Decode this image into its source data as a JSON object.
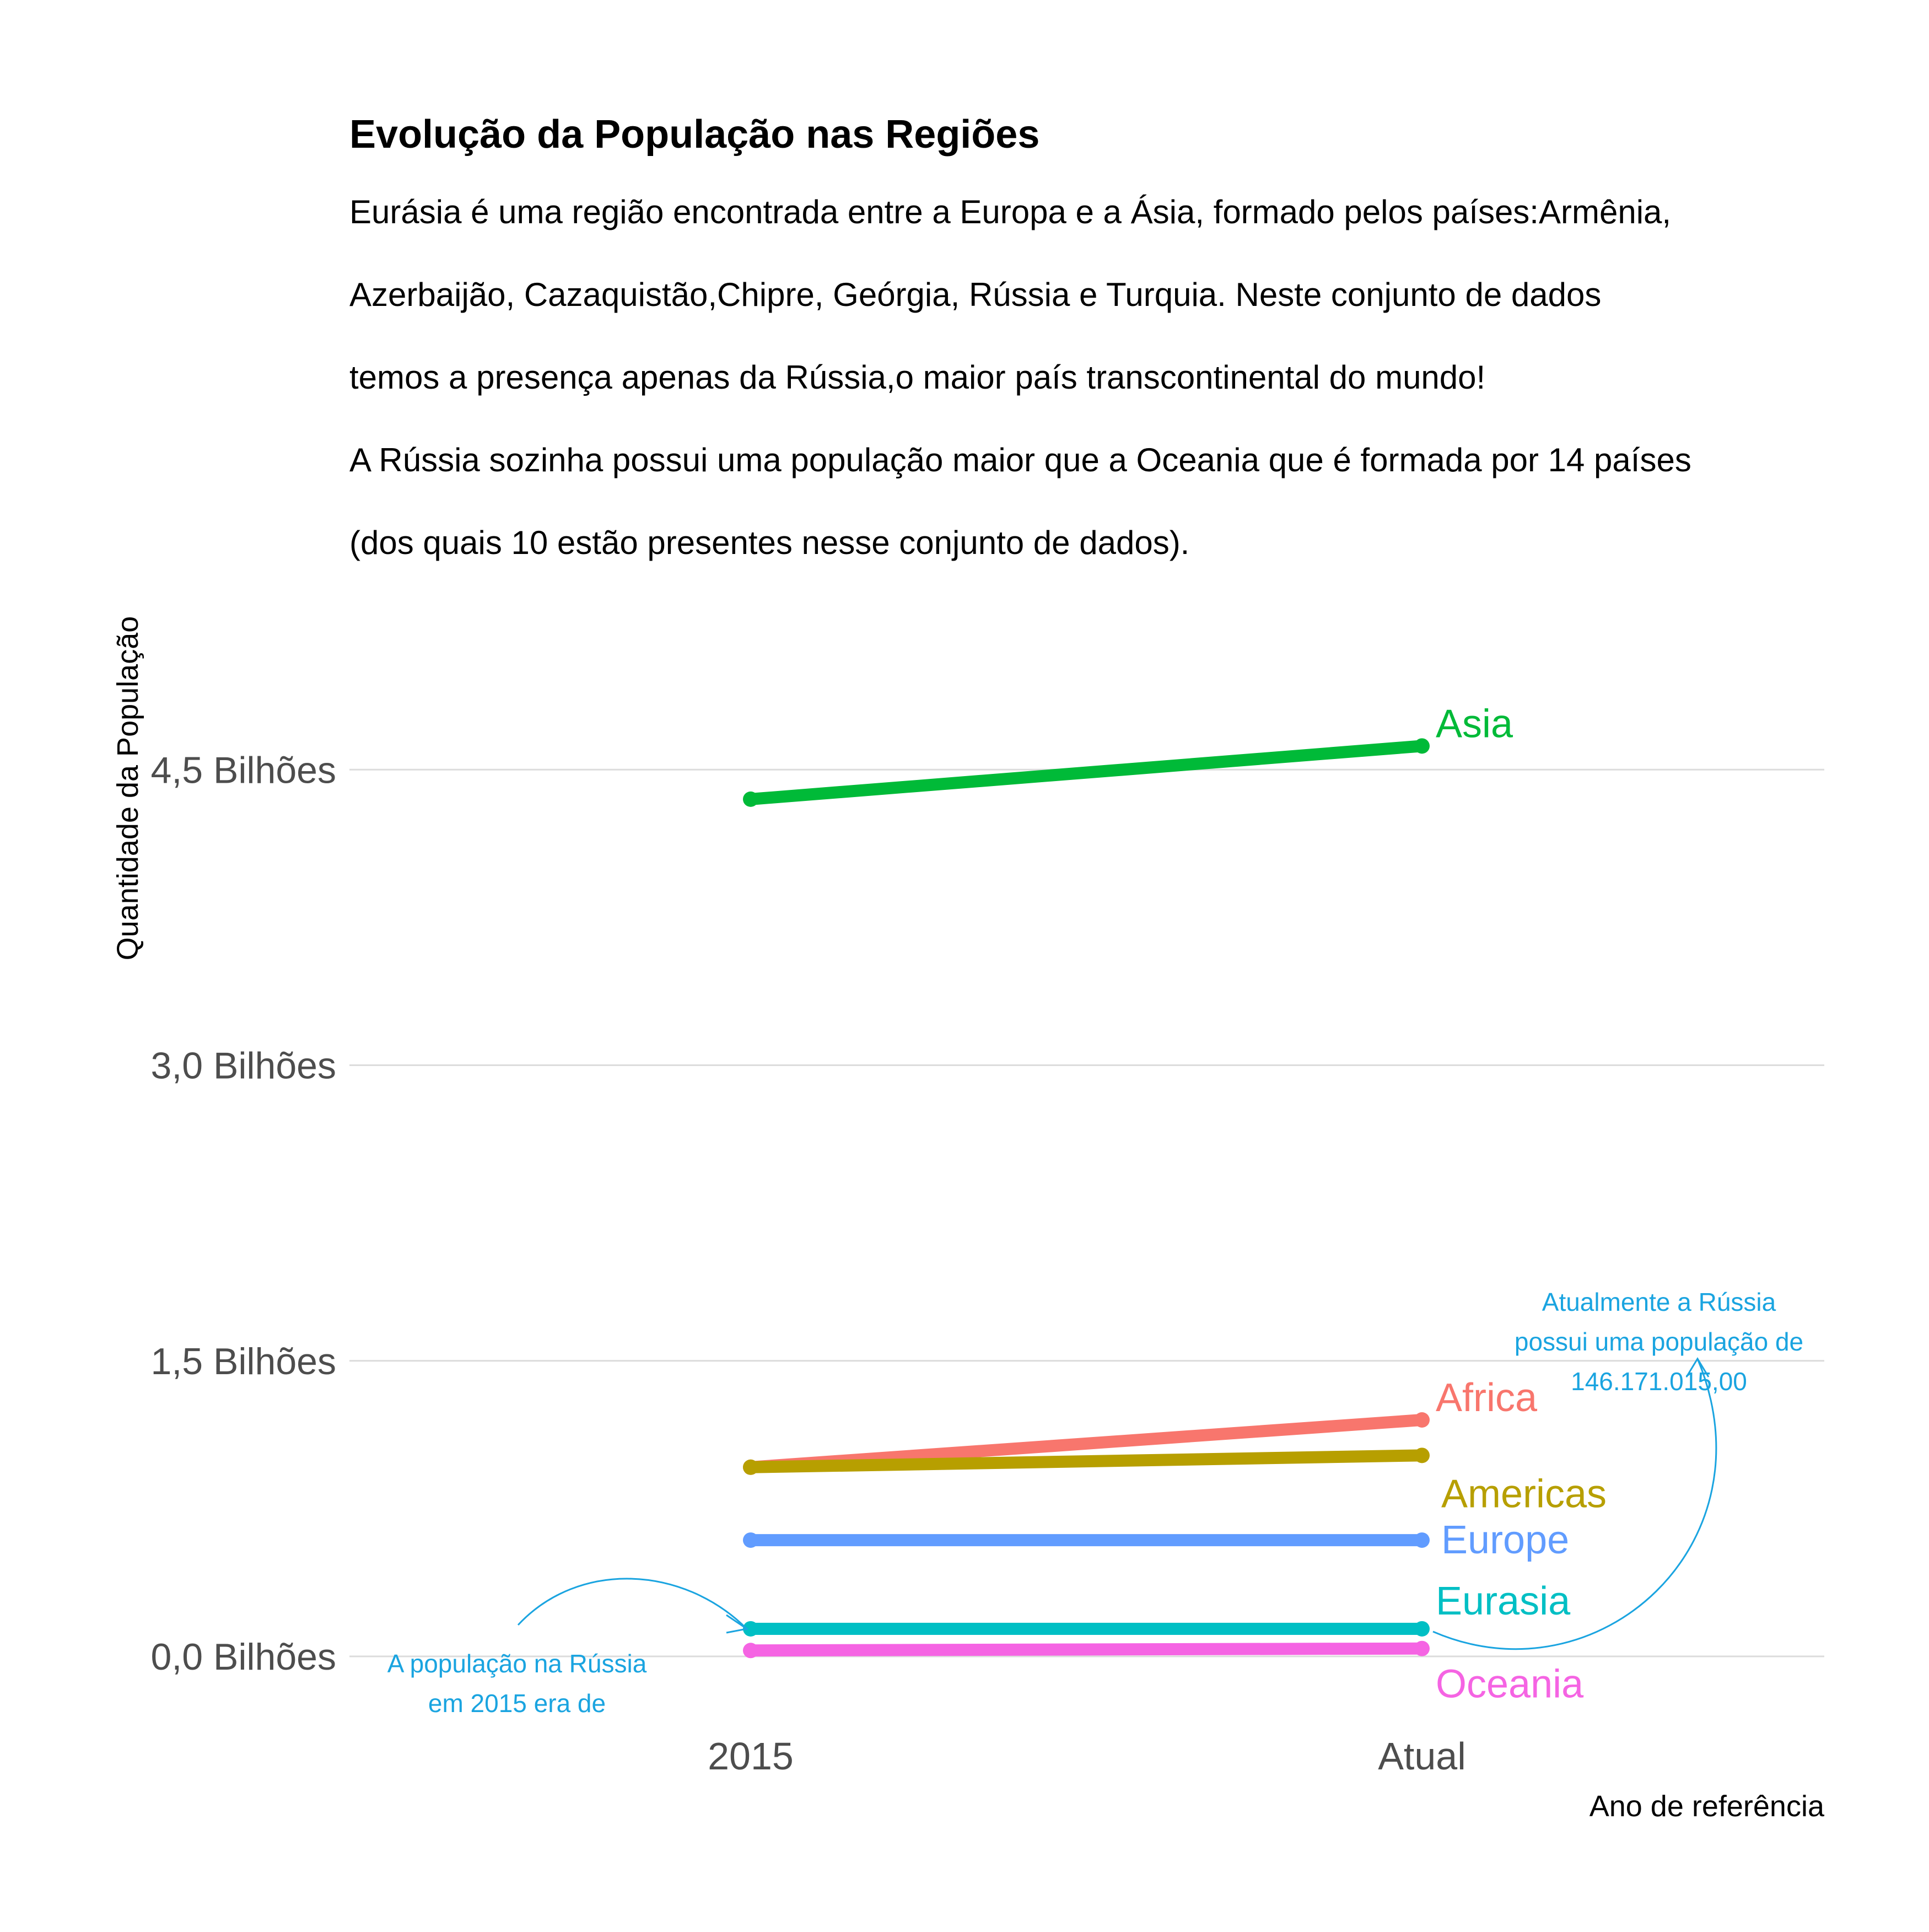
{
  "chart_data": {
    "type": "line",
    "title": "Evolução da População nas Regiões",
    "subtitle_lines": [
      "Eurásia é uma região encontrada entre a Europa e a Ásia, formado pelos países:Armênia,",
      "Azerbaijão, Cazaquistão,Chipre, Geórgia, Rússia e Turquia. Neste conjunto de dados",
      "temos a presença apenas da Rússia,o maior país transcontinental do mundo!",
      "A Rússia sozinha possui uma população maior que a Oceania que é formada por 14 países",
      "(dos quais 10 estão presentes nesse conjunto de dados)."
    ],
    "xlabel": "Ano de referência",
    "ylabel": "Quantidade da População",
    "categories": [
      "2015",
      "Atual"
    ],
    "ylim": [
      -0.35,
      5.0
    ],
    "yticks": [
      0,
      1.5,
      3.0,
      4.5
    ],
    "ytick_labels": [
      "0,0 Bilhões",
      "1,5 Bilhões",
      "3,0 Bilhões",
      "4,5 Bilhões"
    ],
    "y_units": "Bilhões",
    "grid": true,
    "legend": "none (labels at line ends)",
    "series": [
      {
        "name": "Asia",
        "color": "#00ba38",
        "values": [
          4.35,
          4.62
        ]
      },
      {
        "name": "Africa",
        "color": "#f8766d",
        "values": [
          0.96,
          1.2
        ]
      },
      {
        "name": "Americas",
        "color": "#b79f00",
        "values": [
          0.96,
          1.02
        ]
      },
      {
        "name": "Europe",
        "color": "#619cff",
        "values": [
          0.59,
          0.59
        ]
      },
      {
        "name": "Eurasia",
        "color": "#00bfc4",
        "values": [
          0.14,
          0.14
        ]
      },
      {
        "name": "Oceania",
        "color": "#f564e3",
        "values": [
          0.03,
          0.04
        ]
      }
    ],
    "annotations": [
      {
        "lines": [
          "A população na Rússia",
          "em 2015 era de"
        ],
        "color": "#1aa4e0"
      },
      {
        "lines": [
          "Atualmente a Rússia",
          "possui uma população de",
          "146.171.015,00"
        ],
        "color": "#1aa4e0"
      }
    ]
  }
}
